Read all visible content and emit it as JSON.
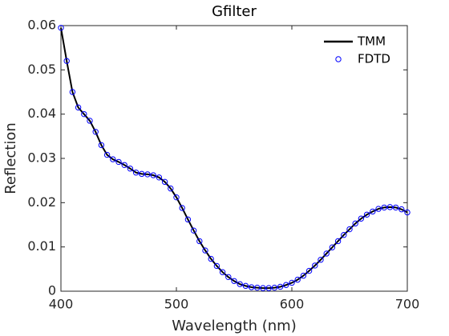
{
  "chart_data": {
    "type": "line",
    "title": "Gfilter",
    "xlabel": "Wavelength (nm)",
    "ylabel": "Reflection",
    "x": [
      400,
      405,
      410,
      415,
      420,
      425,
      430,
      435,
      440,
      445,
      450,
      455,
      460,
      465,
      470,
      475,
      480,
      485,
      490,
      495,
      500,
      505,
      510,
      515,
      520,
      525,
      530,
      535,
      540,
      545,
      550,
      555,
      560,
      565,
      570,
      575,
      580,
      585,
      590,
      595,
      600,
      605,
      610,
      615,
      620,
      625,
      630,
      635,
      640,
      645,
      650,
      655,
      660,
      665,
      670,
      675,
      680,
      685,
      690,
      695,
      700
    ],
    "series": [
      {
        "name": "TMM",
        "color": "#000000",
        "mode": "line",
        "values": [
          0.0595,
          0.052,
          0.045,
          0.0415,
          0.04,
          0.0385,
          0.036,
          0.033,
          0.0308,
          0.0298,
          0.0292,
          0.0285,
          0.0277,
          0.0268,
          0.0265,
          0.0264,
          0.0262,
          0.0257,
          0.0247,
          0.0232,
          0.0212,
          0.0188,
          0.0162,
          0.0137,
          0.0113,
          0.0092,
          0.0073,
          0.0057,
          0.0043,
          0.0032,
          0.0023,
          0.0016,
          0.0012,
          0.0009,
          0.0008,
          0.0007,
          0.0007,
          0.0008,
          0.001,
          0.0014,
          0.0019,
          0.0026,
          0.0035,
          0.0046,
          0.0058,
          0.0071,
          0.0085,
          0.0099,
          0.0113,
          0.0127,
          0.014,
          0.0153,
          0.0164,
          0.0173,
          0.018,
          0.0186,
          0.0189,
          0.019,
          0.0189,
          0.0185,
          0.0178
        ]
      },
      {
        "name": "FDTD",
        "color": "#0000ff",
        "mode": "markers",
        "values": [
          0.0595,
          0.052,
          0.045,
          0.0415,
          0.04,
          0.0385,
          0.036,
          0.033,
          0.0308,
          0.0298,
          0.0292,
          0.0285,
          0.0277,
          0.0268,
          0.0265,
          0.0264,
          0.0262,
          0.0257,
          0.0247,
          0.0232,
          0.0212,
          0.0188,
          0.0162,
          0.0137,
          0.0113,
          0.0092,
          0.0073,
          0.0057,
          0.0043,
          0.0032,
          0.0023,
          0.0016,
          0.0012,
          0.0009,
          0.0008,
          0.0007,
          0.0007,
          0.0008,
          0.001,
          0.0014,
          0.0019,
          0.0026,
          0.0035,
          0.0046,
          0.0058,
          0.0071,
          0.0085,
          0.0099,
          0.0113,
          0.0127,
          0.014,
          0.0153,
          0.0164,
          0.0173,
          0.018,
          0.0186,
          0.0189,
          0.019,
          0.0189,
          0.0185,
          0.0178
        ]
      }
    ],
    "xlim": [
      400,
      700
    ],
    "xticks": [
      400,
      500,
      600,
      700
    ],
    "ylim": [
      0,
      0.06
    ],
    "yticks": [
      0,
      0.01,
      0.02,
      0.03,
      0.04,
      0.05,
      0.06
    ],
    "legend": "upper right"
  }
}
